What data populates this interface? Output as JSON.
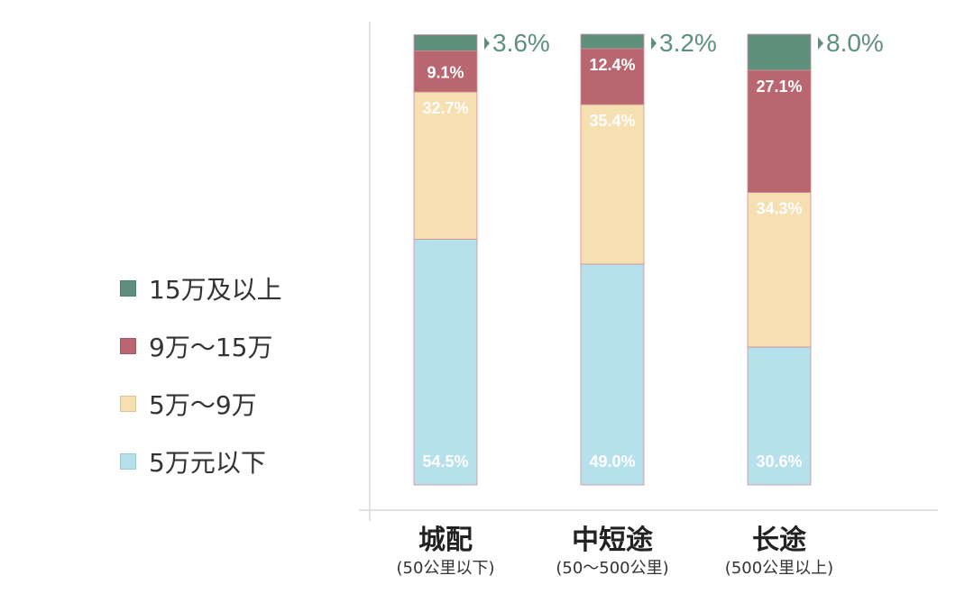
{
  "chart_data": {
    "type": "bar",
    "stacked": true,
    "categories": [
      "城配",
      "中短途",
      "长途"
    ],
    "category_notes": [
      "(50公里以下)",
      "(50～500公里)",
      "(500公里以上)"
    ],
    "series": [
      {
        "name": "5万元以下",
        "values": [
          54.5,
          49.0,
          30.6
        ],
        "color": "#b6e0ec"
      },
      {
        "name": "5万～9万",
        "values": [
          32.7,
          35.4,
          34.3
        ],
        "color": "#f6dfb0"
      },
      {
        "name": "9万～15万",
        "values": [
          9.1,
          12.4,
          27.1
        ],
        "color": "#b96670"
      },
      {
        "name": "15万及以上",
        "values": [
          3.6,
          3.2,
          8.0
        ],
        "color": "#5f8f7d"
      }
    ],
    "data_labels": [
      [
        "54.5%",
        "32.7%",
        "9.1%",
        "3.6%"
      ],
      [
        "49.0%",
        "35.4%",
        "12.4%",
        "3.2%"
      ],
      [
        "30.6%",
        "34.3%",
        "27.1%",
        "8.0%"
      ]
    ],
    "legend_order": [
      "15万及以上",
      "9万～15万",
      "5万～9万",
      "5万元以下"
    ],
    "legend_position": "left",
    "grid": false,
    "ylim": [
      0,
      100
    ],
    "title": "",
    "xlabel": "",
    "ylabel": ""
  }
}
